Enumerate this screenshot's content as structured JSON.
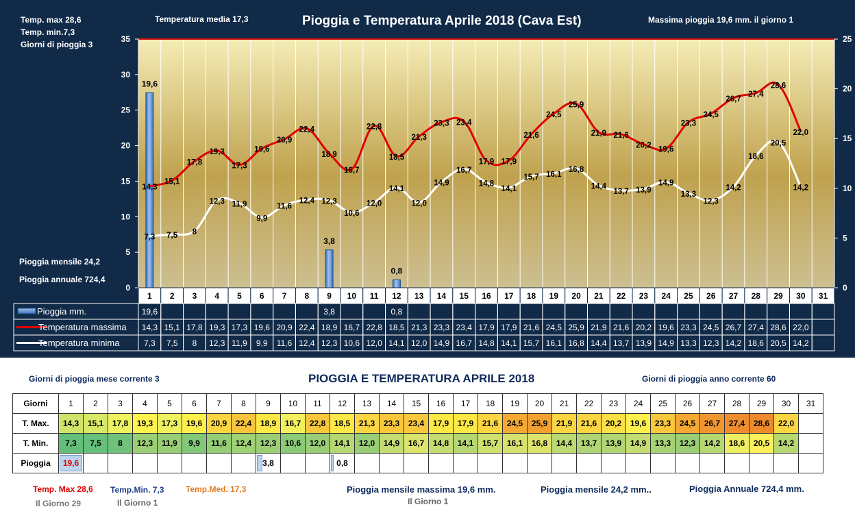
{
  "chart_data": {
    "type": "bar",
    "title": "Pioggia e Temperatura Aprile 2018 (Cava Est)",
    "categories": [
      "1",
      "2",
      "3",
      "4",
      "5",
      "6",
      "7",
      "8",
      "9",
      "10",
      "11",
      "12",
      "13",
      "14",
      "15",
      "16",
      "17",
      "18",
      "19",
      "20",
      "21",
      "22",
      "23",
      "24",
      "25",
      "26",
      "27",
      "28",
      "29",
      "30",
      "31"
    ],
    "left_axis_ticks": [
      "0",
      "5",
      "10",
      "15",
      "20",
      "25",
      "30",
      "35"
    ],
    "right_axis_ticks": [
      "0",
      "5",
      "10",
      "15",
      "20",
      "25"
    ],
    "ylim_left": [
      0,
      35
    ],
    "ylim_right": [
      0,
      25
    ],
    "series": [
      {
        "name": "Pioggia mm.",
        "type": "bar",
        "axis": "right",
        "color": "#4f86d6",
        "values": [
          19.6,
          null,
          null,
          null,
          null,
          null,
          null,
          null,
          3.8,
          null,
          null,
          0.8,
          null,
          null,
          null,
          null,
          null,
          null,
          null,
          null,
          null,
          null,
          null,
          null,
          null,
          null,
          null,
          null,
          null,
          null,
          null
        ],
        "labels": [
          "19,6",
          "",
          "",
          "",
          "",
          "",
          "",
          "",
          "3,8",
          "",
          "",
          "0,8",
          "",
          "",
          "",
          "",
          "",
          "",
          "",
          "",
          "",
          "",
          "",
          "",
          "",
          "",
          "",
          "",
          "",
          "",
          ""
        ]
      },
      {
        "name": "Temperatura massima",
        "type": "line",
        "axis": "left",
        "color": "#e00000",
        "values": [
          14.3,
          15.1,
          17.8,
          19.3,
          17.3,
          19.6,
          20.9,
          22.4,
          18.9,
          16.7,
          22.8,
          18.5,
          21.3,
          23.3,
          23.4,
          17.9,
          17.9,
          21.6,
          24.5,
          25.9,
          21.9,
          21.6,
          20.2,
          19.6,
          23.3,
          24.5,
          26.7,
          27.4,
          28.6,
          22.0,
          null
        ],
        "labels": [
          "14,3",
          "15,1",
          "17,8",
          "19,3",
          "17,3",
          "19,6",
          "20,9",
          "22,4",
          "18,9",
          "16,7",
          "22,8",
          "18,5",
          "21,3",
          "23,3",
          "23,4",
          "17,9",
          "17,9",
          "21,6",
          "24,5",
          "25,9",
          "21,9",
          "21,6",
          "20,2",
          "19,6",
          "23,3",
          "24,5",
          "26,7",
          "27,4",
          "28,6",
          "22,0",
          ""
        ]
      },
      {
        "name": "Temperatura minima",
        "type": "line",
        "axis": "left",
        "color": "#ffffff",
        "values": [
          7.3,
          7.5,
          8,
          12.3,
          11.9,
          9.9,
          11.6,
          12.4,
          12.3,
          10.6,
          12.0,
          14.1,
          12.0,
          14.9,
          16.7,
          14.8,
          14.1,
          15.7,
          16.1,
          16.8,
          14.4,
          13.7,
          13.9,
          14.9,
          13.3,
          12.3,
          14.2,
          18.6,
          20.5,
          14.2,
          null
        ],
        "labels": [
          "7,3",
          "7,5",
          "8",
          "12,3",
          "11,9",
          "9,9",
          "11,6",
          "12,4",
          "12,3",
          "10,6",
          "12,0",
          "14,1",
          "12,0",
          "14,9",
          "16,7",
          "14,8",
          "14,1",
          "15,7",
          "16,1",
          "16,8",
          "14,4",
          "13,7",
          "13,9",
          "14,9",
          "13,3",
          "12,3",
          "14,2",
          "18,6",
          "20,5",
          "14,2",
          ""
        ]
      }
    ],
    "grid": true,
    "legend": "table-bottom"
  },
  "header": {
    "temp_max": "Temp. max  28,6",
    "temp_min": "Temp.  min.7,3",
    "giorni_pioggia": "Giorni  di pioggia   3",
    "temp_media": "Temperatura media  17,3",
    "massima_pioggia": "Massima pioggia  19,6 mm.  il giorno  1",
    "pioggia_mensile": "Pioggia mensile    24,2",
    "pioggia_annuale": "Pioggia annuale   724,4"
  },
  "summary": {
    "title": "PIOGGIA E TEMPERATURA APRILE 2018",
    "giorni_mese": "Giorni di pioggia mese corrente   3",
    "giorni_anno": "Giorni di pioggia anno corrente  60",
    "row_labels": [
      "Giorni",
      "T. Max.",
      "T. Min.",
      "Pioggia"
    ],
    "tmax_colors": [
      "#cfe36a",
      "#d9e866",
      "#eef25e",
      "#fff34f",
      "#eef25e",
      "#fff04c",
      "#fbd542",
      "#f8c43c",
      "#fde845",
      "#f2f05c",
      "#f9c73c",
      "#fde845",
      "#fbd542",
      "#f9c73c",
      "#f9c73c",
      "#fde845",
      "#fde845",
      "#fbd542",
      "#f5a833",
      "#f3a032",
      "#fbd542",
      "#fbd542",
      "#fbdf44",
      "#fff04c",
      "#f9c73c",
      "#f5a833",
      "#f0962f",
      "#ee8c2e",
      "#ed8a2c",
      "#fbd542"
    ],
    "tmin_colors": [
      "#63be7b",
      "#66bf7b",
      "#6fc27b",
      "#9bcf75",
      "#97ce76",
      "#83c878",
      "#94cd76",
      "#9fd175",
      "#9bcf75",
      "#8bca77",
      "#97ce76",
      "#b6d873",
      "#97ce76",
      "#c4dc71",
      "#dce46b",
      "#c4dc71",
      "#b6d873",
      "#cfe06e",
      "#d6e26d",
      "#dde46b",
      "#bcd972",
      "#afd574",
      "#b3d674",
      "#c4dc71",
      "#a7d375",
      "#9bcf75",
      "#b6d873",
      "#edee63",
      "#fbf05b",
      "#b6d873"
    ],
    "rain_labels": [
      "19,6",
      "",
      "",
      "",
      "",
      "",
      "",
      "",
      "3,8",
      "",
      "",
      "0,8",
      "",
      "",
      "",
      "",
      "",
      "",
      "",
      "",
      "",
      "",
      "",
      "",
      "",
      "",
      "",
      "",
      "",
      "",
      ""
    ],
    "footer": {
      "tmax": "Temp. Max  28,6",
      "tmax_day": "Il Giorno  29",
      "tmin": "Temp.Min.  7,3",
      "tmin_day": "Il Giorno  1",
      "tmed": "Temp.Med. 17,3",
      "pioggia_mensile_massima": "Pioggia mensile massima  19,6 mm.",
      "pioggia_mensile_massima_day": "Il Giorno  1",
      "pioggia_mensile": "Pioggia mensile   24,2    mm..",
      "pioggia_annuale": "Pioggia Annuale  724,4  mm."
    }
  }
}
